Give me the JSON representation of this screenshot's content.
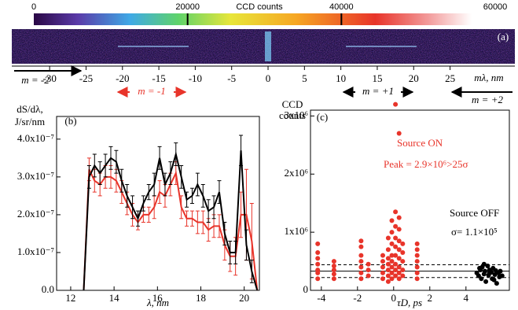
{
  "chart_data": [
    {
      "type": "image",
      "label": "(a)",
      "colorbar_title": "CCD counts",
      "clim": [
        0,
        60000
      ],
      "colorbar_ticks": [
        0,
        20000,
        40000,
        60000
      ],
      "xlabel": "mλ, nm",
      "xlim": [
        -35.2,
        33.9
      ],
      "xticks": [
        -30,
        -25,
        -20,
        -15,
        -10,
        -5,
        0,
        5,
        10,
        15,
        20,
        25
      ],
      "orders": [
        "m = -2",
        "m = -1",
        "m = +1",
        "m = +2"
      ]
    },
    {
      "type": "line",
      "label": "(b)",
      "ylabel": [
        "dS/dλ,",
        "J/sr/nm"
      ],
      "xlabel": "λ, nm",
      "xlim": [
        11.35,
        20.7
      ],
      "ylim": [
        0,
        4.6e-07
      ],
      "xticks": [
        12,
        14,
        16,
        18,
        20
      ],
      "yticks": [
        {
          "value": 0,
          "label": "0.0"
        },
        {
          "value": 1e-07,
          "label": "1.0x10⁻⁷"
        },
        {
          "value": 2e-07,
          "label": "2.0x10⁻⁷"
        },
        {
          "value": 3e-07,
          "label": "3.0x10⁻⁷"
        },
        {
          "value": 4e-07,
          "label": "4.0x10⁻⁷"
        }
      ],
      "x": [
        12.6,
        12.85,
        13.1,
        13.35,
        13.6,
        13.85,
        14.1,
        14.35,
        14.6,
        14.85,
        15.1,
        15.35,
        15.6,
        15.85,
        16.1,
        16.35,
        16.6,
        16.85,
        17.1,
        17.35,
        17.6,
        17.85,
        18.1,
        18.35,
        18.6,
        18.85,
        19.1,
        19.35,
        19.6,
        19.85,
        20.1,
        20.35,
        20.6
      ],
      "series": [
        {
          "color": "#e8342a",
          "values": [
            0,
            3.2e-07,
            2.9e-07,
            2.8e-07,
            3e-07,
            3e-07,
            2.9e-07,
            2.6e-07,
            2.3e-07,
            2e-07,
            1.8e-07,
            2e-07,
            2e-07,
            2.2e-07,
            2.6e-07,
            2.5e-07,
            2.8e-07,
            3.1e-07,
            2.2e-07,
            1.9e-07,
            1.9e-07,
            1.8e-07,
            1.8e-07,
            1.6e-07,
            1.7e-07,
            1.7e-07,
            1.2e-07,
            9e-08,
            9e-08,
            2e-07,
            2e-07,
            1.3e-07,
            0
          ],
          "errors": [
            0,
            3e-08,
            3e-08,
            3e-08,
            3e-08,
            3e-08,
            3e-08,
            3e-08,
            3e-08,
            3e-08,
            2e-08,
            2e-08,
            2e-08,
            3e-08,
            3e-08,
            3e-08,
            3e-08,
            3e-08,
            3e-08,
            2e-08,
            2e-08,
            3e-08,
            3e-08,
            3e-08,
            3e-08,
            3e-08,
            4e-08,
            4e-08,
            5e-08,
            6e-08,
            1.2e-07,
            1e-07,
            0
          ]
        },
        {
          "color": "#000000",
          "values": [
            0,
            3e-07,
            3.3e-07,
            3.1e-07,
            3.3e-07,
            3.5e-07,
            3.4e-07,
            2.9e-07,
            2.5e-07,
            2.2e-07,
            1.9e-07,
            2.3e-07,
            2.6e-07,
            2.8e-07,
            3.5e-07,
            2.8e-07,
            3.1e-07,
            3.6e-07,
            3e-07,
            2.4e-07,
            2.5e-07,
            2.8e-07,
            2.5e-07,
            2.1e-07,
            2.2e-07,
            2.6e-07,
            1.5e-07,
            1e-07,
            1e-07,
            3.7e-07,
            1.2e-07,
            5e-08,
            0
          ],
          "errors": [
            0,
            3e-08,
            3e-08,
            3e-08,
            3e-08,
            3e-08,
            3e-08,
            3e-08,
            3e-08,
            3e-08,
            2e-08,
            2e-08,
            2e-08,
            3e-08,
            3e-08,
            3e-08,
            3e-08,
            3e-08,
            3e-08,
            2e-08,
            2e-08,
            3e-08,
            3e-08,
            3e-08,
            3e-08,
            3e-08,
            3e-08,
            3e-08,
            3e-08,
            4e-08,
            4e-08,
            3e-08,
            0
          ]
        }
      ]
    },
    {
      "type": "scatter",
      "label": "(c)",
      "ylabel": [
        "CCD",
        "counts"
      ],
      "xlabel": "τD, ps",
      "xlim": [
        -4.6,
        6.4
      ],
      "ylim": [
        0,
        3100000
      ],
      "xticks": [
        -4,
        -2,
        0,
        2,
        4
      ],
      "yticks": [
        0,
        {
          "value": 1000000,
          "label": "1x10⁶"
        },
        {
          "value": 2000000,
          "label": "2x10⁶"
        },
        {
          "value": 3000000,
          "label": "3x10⁶"
        }
      ],
      "hlines": [
        {
          "value": 330000,
          "style": "solid"
        },
        {
          "value": 220000,
          "style": "dashed"
        },
        {
          "value": 440000,
          "style": "dashed"
        }
      ],
      "annotations": [
        "Peak = 2.9×10⁶>25σ",
        "σ= 1.1×10⁵"
      ],
      "series": [
        {
          "name": "Source ON",
          "color": "#e8342a",
          "x": [
            -4.2,
            -4.2,
            -4.2,
            -4.2,
            -4.2,
            -4.2,
            -4.2,
            -3.3,
            -3.3,
            -3.3,
            -3.3,
            -3.3,
            -1.8,
            -1.8,
            -1.8,
            -1.8,
            -1.8,
            -1.8,
            -1.8,
            -1.4,
            -1.4,
            -1.4,
            -0.6,
            -0.6,
            -0.6,
            -0.6,
            -0.6,
            -0.3,
            -0.3,
            -0.3,
            -0.3,
            -0.3,
            -0.3,
            -0.3,
            -0.1,
            -0.1,
            -0.1,
            -0.1,
            -0.1,
            -0.1,
            -0.1,
            -0.1,
            0.1,
            0.1,
            0.1,
            0.1,
            0.1,
            0.1,
            0.1,
            0.1,
            0.1,
            0.3,
            0.3,
            0.3,
            0.3,
            0.3,
            0.3,
            0.3,
            0.3,
            0.3,
            0.5,
            0.5,
            0.5,
            0.5,
            0.5,
            1.3,
            1.3,
            1.3,
            1.3,
            1.3,
            1.3,
            1.3
          ],
          "values": [
            200000,
            300000,
            350000,
            450000,
            550000,
            650000,
            800000,
            200000,
            280000,
            350000,
            420000,
            500000,
            200000,
            300000,
            400000,
            500000,
            600000,
            750000,
            850000,
            250000,
            350000,
            450000,
            200000,
            300000,
            400000,
            500000,
            600000,
            150000,
            250000,
            350000,
            450000,
            550000,
            700000,
            900000,
            200000,
            300000,
            400000,
            500000,
            600000,
            800000,
            1000000,
            1200000,
            250000,
            350000,
            450000,
            600000,
            750000,
            900000,
            1100000,
            1350000,
            3200000,
            200000,
            300000,
            400000,
            550000,
            700000,
            850000,
            1050000,
            1250000,
            2700000,
            250000,
            350000,
            500000,
            650000,
            800000,
            200000,
            300000,
            400000,
            500000,
            600000,
            700000,
            800000
          ]
        },
        {
          "name": "Source OFF",
          "color": "#000000",
          "x": [
            4.6,
            4.7,
            4.8,
            4.85,
            4.9,
            5.0,
            5.05,
            5.1,
            5.2,
            5.25,
            5.3,
            5.4,
            5.45,
            5.5,
            5.6,
            5.65,
            5.7,
            5.8,
            5.85,
            5.9,
            6.0,
            5.0,
            5.3,
            5.55,
            4.75
          ],
          "values": [
            300000,
            250000,
            350000,
            200000,
            400000,
            280000,
            330000,
            150000,
            420000,
            260000,
            350000,
            310000,
            200000,
            380000,
            270000,
            340000,
            120000,
            300000,
            230000,
            330000,
            250000,
            450000,
            300000,
            180000,
            380000
          ]
        }
      ]
    }
  ]
}
